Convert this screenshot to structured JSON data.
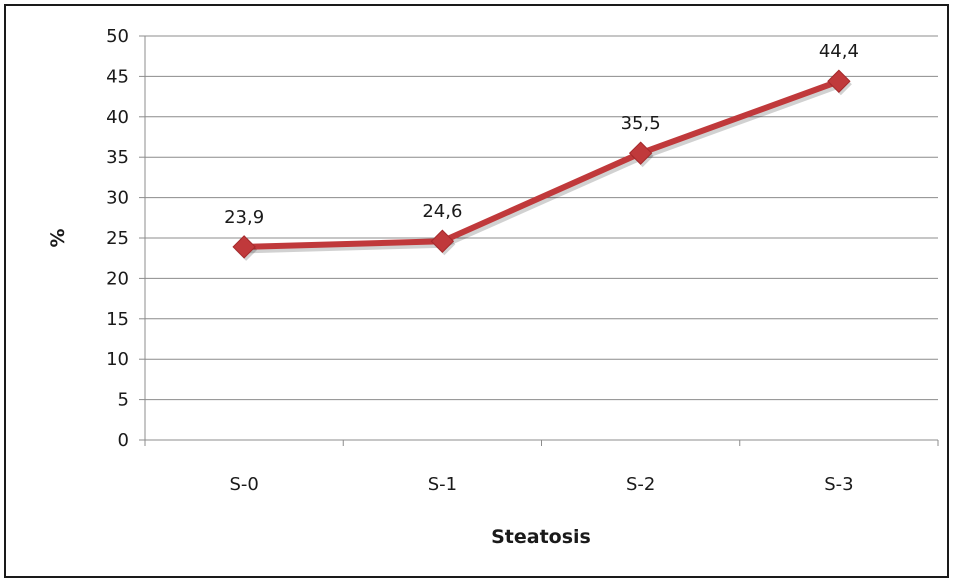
{
  "chart_data": {
    "type": "line",
    "title": "",
    "xlabel": "Steatosis",
    "ylabel": "%",
    "ylim": [
      0,
      50
    ],
    "ytick_step": 5,
    "grid": true,
    "legend": "none",
    "categories": [
      "S-0",
      "S-1",
      "S-2",
      "S-3"
    ],
    "series": [
      {
        "values": [
          23.9,
          24.6,
          35.5,
          44.4
        ],
        "data_labels": [
          "23,9",
          "24,6",
          "35,5",
          "44,4"
        ],
        "color": "#c0393b",
        "marker": "diamond"
      }
    ]
  }
}
